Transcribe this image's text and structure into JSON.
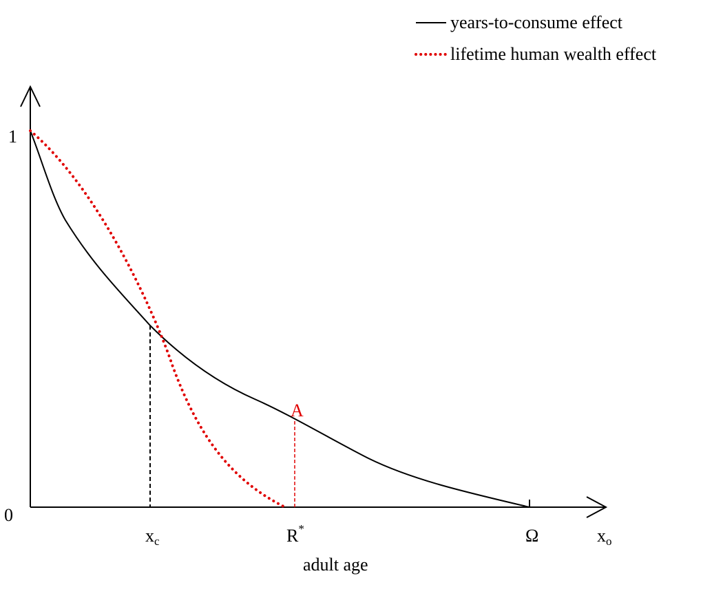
{
  "legend": {
    "items": [
      {
        "label": "years-to-consume effect",
        "style": "solid",
        "color": "#000000"
      },
      {
        "label": "lifetime human wealth effect",
        "style": "dotted",
        "color": "#e00000"
      }
    ]
  },
  "axes": {
    "y_top_label": "1",
    "origin_label": "0",
    "x_title": "adult age"
  },
  "x_ticks": {
    "xc": {
      "base": "x",
      "sub": "c"
    },
    "rstar": {
      "base": "R",
      "sup": "*"
    },
    "omega": {
      "base": "Ω"
    },
    "xo": {
      "base": "x",
      "sub": "o"
    }
  },
  "point_label": {
    "text": "A",
    "color": "#e00000"
  }
}
